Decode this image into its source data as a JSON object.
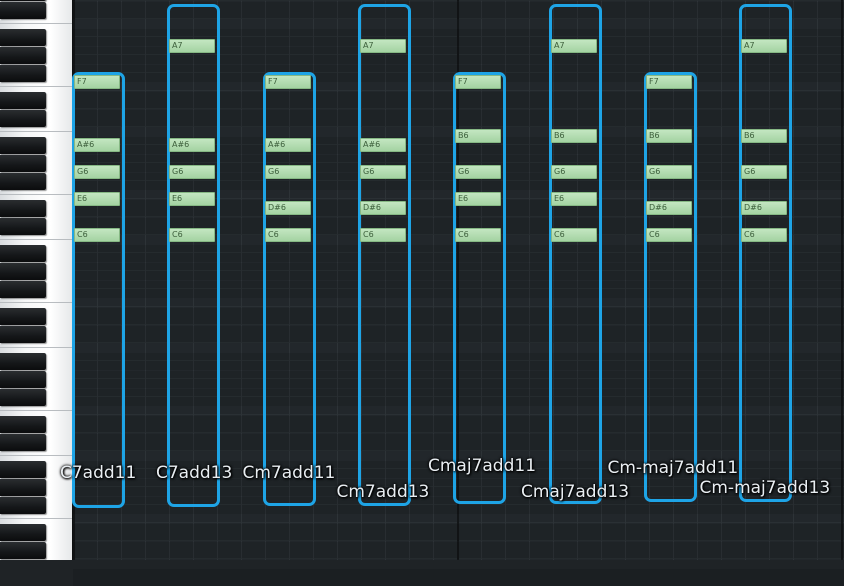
{
  "chords": [
    {
      "label": "C7add11",
      "notes": [
        "F7",
        "A#6",
        "G6",
        "E6",
        "C6"
      ]
    },
    {
      "label": "C7add13",
      "notes": [
        "A7",
        "A#6",
        "G6",
        "E6",
        "C6"
      ]
    },
    {
      "label": "Cm7add11",
      "notes": [
        "F7",
        "A#6",
        "G6",
        "D#6",
        "C6"
      ]
    },
    {
      "label": "Cm7add13",
      "notes": [
        "A7",
        "A#6",
        "G6",
        "D#6",
        "C6"
      ]
    },
    {
      "label": "Cmaj7add11",
      "notes": [
        "F7",
        "B6",
        "G6",
        "E6",
        "C6"
      ]
    },
    {
      "label": "Cmaj7add13",
      "notes": [
        "A7",
        "B6",
        "G6",
        "E6",
        "C6"
      ]
    },
    {
      "label": "Cm-maj7add11",
      "notes": [
        "F7",
        "B6",
        "G6",
        "D#6",
        "C6"
      ]
    },
    {
      "label": "Cm-maj7add13",
      "notes": [
        "A7",
        "B6",
        "G6",
        "D#6",
        "C6"
      ]
    }
  ],
  "colors": {
    "chord_outline": "#1ea4e6",
    "note_fill": "#b3dcb1",
    "note_text": "#3c5e3b",
    "grid_bg": "#22272b",
    "label_text": "#e9eef2"
  }
}
